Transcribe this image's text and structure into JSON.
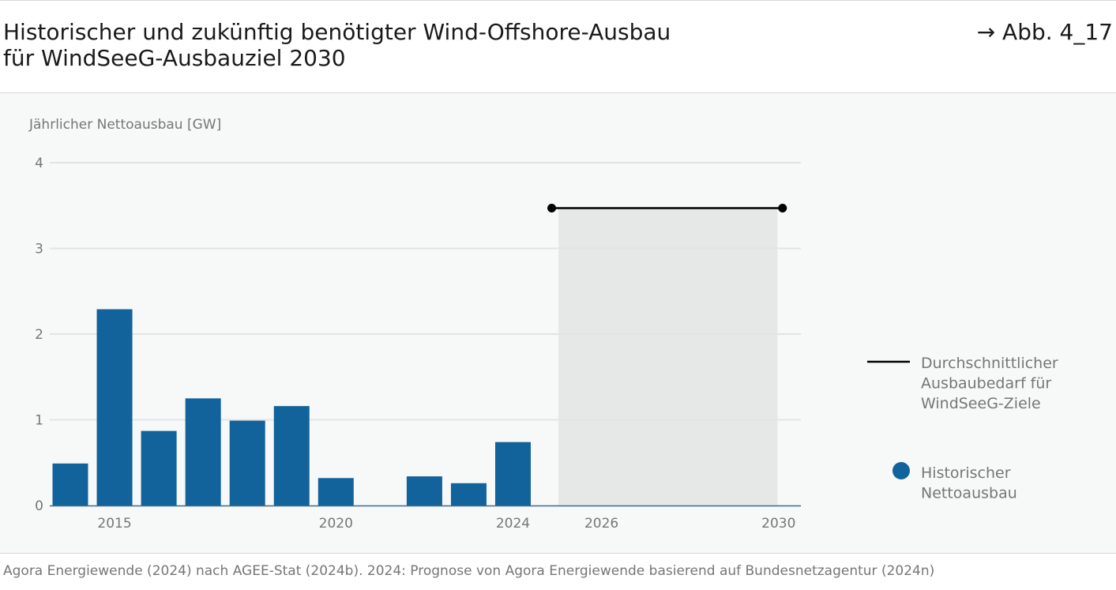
{
  "header": {
    "title_line1": "Historischer und zukünftig benötigter Wind-Offshore-Ausbau",
    "title_line2": "für WindSeeG-Ausbauziel 2030",
    "figure_ref": "→ Abb. 4_17"
  },
  "footer": {
    "source": "Agora Energiewende (2024) nach AGEE-Stat (2024b). 2024: Prognose von Agora Energiewende basierend auf Bundesnetzagentur (2024n)"
  },
  "chart_data": {
    "type": "bar",
    "ylabel": "Jährlicher Nettoausbau [GW]",
    "ylim": [
      0,
      4
    ],
    "yticks": [
      0,
      1,
      2,
      3,
      4
    ],
    "grid": true,
    "x": [
      2014,
      2015,
      2016,
      2017,
      2018,
      2019,
      2020,
      2021,
      2022,
      2023,
      2024
    ],
    "xtick_labels": [
      {
        "x": 2015,
        "label": "2015"
      },
      {
        "x": 2020,
        "label": "2020"
      },
      {
        "x": 2024,
        "label": "2024"
      },
      {
        "x": 2026,
        "label": "2026"
      },
      {
        "x": 2030,
        "label": "2030"
      }
    ],
    "series": [
      {
        "name": "Historischer Nettoausbau",
        "color": "#12629b",
        "values": [
          0.49,
          2.29,
          0.87,
          1.25,
          0.99,
          1.16,
          0.32,
          0.0,
          0.34,
          0.26,
          0.74
        ]
      }
    ],
    "target_line": {
      "name": "Durchschnittlicher Ausbaubedarf für WindSeeG-Ziele",
      "color": "#000000",
      "value": 3.47,
      "x_range": [
        2025,
        2030
      ]
    },
    "future_area": {
      "x_range": [
        2025,
        2030
      ],
      "color": "#e6e7e7"
    },
    "legend": {
      "position": "right",
      "items": [
        {
          "symbol": "line",
          "lines": [
            "Durchschnittlicher",
            "Ausbaubedarf für",
            "WindSeeG-Ziele"
          ]
        },
        {
          "symbol": "dot",
          "lines": [
            "Historischer",
            "Nettoausbau"
          ]
        }
      ]
    }
  }
}
